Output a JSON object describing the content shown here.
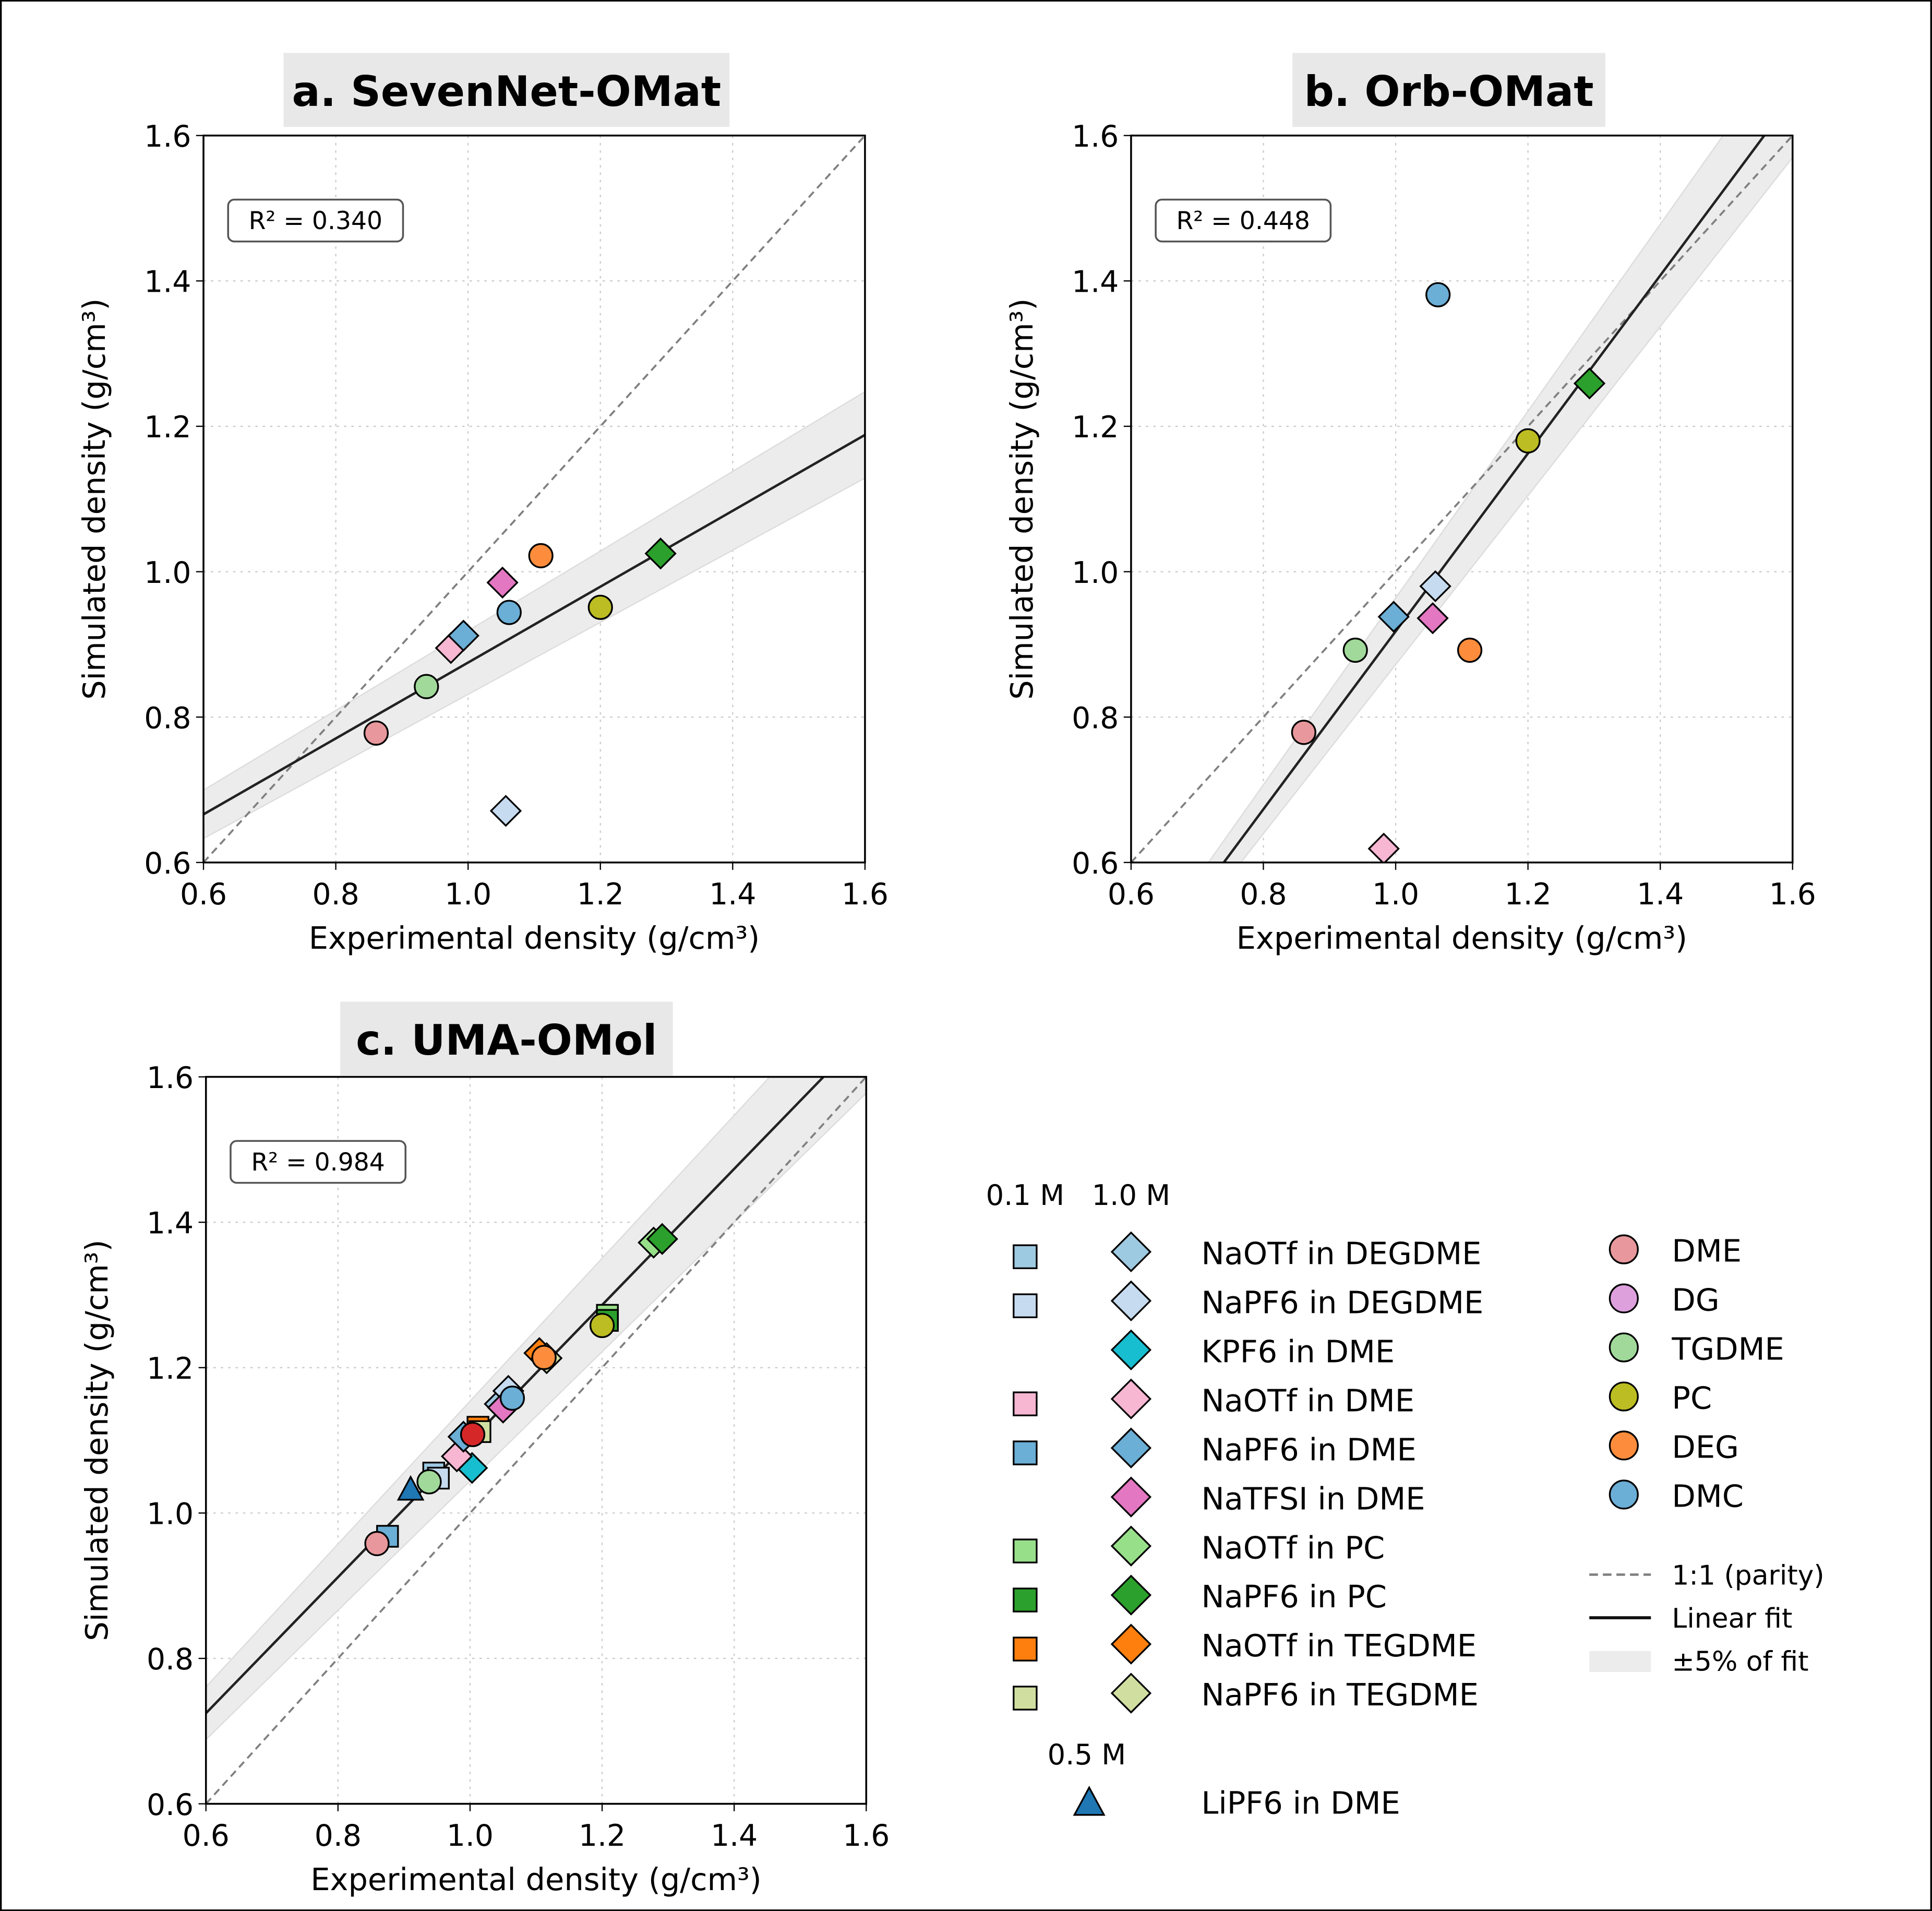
{
  "chart_data": [
    {
      "type": "scatter",
      "title": "a. SevenNet-OMat",
      "xlabel": "Experimental density (g/cm³)",
      "ylabel": "Simulated density (g/cm³)",
      "xlim": [
        0.6,
        1.6
      ],
      "ylim": [
        0.6,
        1.6
      ],
      "xticks": [
        "0.6",
        "0.8",
        "1.0",
        "1.2",
        "1.4",
        "1.6"
      ],
      "yticks": [
        "0.6",
        "0.8",
        "1.0",
        "1.2",
        "1.4",
        "1.6"
      ],
      "grid": true,
      "r2_label": "R² = 0.340",
      "fit": {
        "slope": 0.522,
        "intercept": 0.353
      },
      "points": [
        {
          "x": 0.861,
          "y": 0.778,
          "series": "DME",
          "shape": "circle"
        },
        {
          "x": 0.937,
          "y": 0.842,
          "series": "TGDME",
          "shape": "circle"
        },
        {
          "x": 0.974,
          "y": 0.895,
          "series": "NaOTf in DME",
          "shape": "diamond"
        },
        {
          "x": 0.993,
          "y": 0.912,
          "series": "NaPF6 in DME",
          "shape": "diamond"
        },
        {
          "x": 1.052,
          "y": 0.985,
          "series": "NaTFSI in DME",
          "shape": "diamond"
        },
        {
          "x": 1.062,
          "y": 0.944,
          "series": "DMC",
          "shape": "circle"
        },
        {
          "x": 1.11,
          "y": 1.022,
          "series": "DEG",
          "shape": "circle"
        },
        {
          "x": 1.2,
          "y": 0.951,
          "series": "PC",
          "shape": "circle"
        },
        {
          "x": 1.291,
          "y": 1.025,
          "series": "NaPF6 in PC",
          "shape": "diamond"
        },
        {
          "x": 1.057,
          "y": 0.671,
          "series": "NaPF6 in DEGDME",
          "shape": "diamond"
        }
      ]
    },
    {
      "type": "scatter",
      "title": "b. Orb-OMat",
      "xlabel": "Experimental density (g/cm³)",
      "ylabel": "Simulated density (g/cm³)",
      "xlim": [
        0.6,
        1.6
      ],
      "ylim": [
        0.6,
        1.6
      ],
      "xticks": [
        "0.6",
        "0.8",
        "1.0",
        "1.2",
        "1.4",
        "1.6"
      ],
      "yticks": [
        "0.6",
        "0.8",
        "1.0",
        "1.2",
        "1.4",
        "1.6"
      ],
      "grid": true,
      "r2_label": "R² = 0.448",
      "fit": {
        "slope": 1.224,
        "intercept": -0.306
      },
      "points": [
        {
          "x": 1.064,
          "y": 1.381,
          "series": "DMC",
          "shape": "circle"
        },
        {
          "x": 1.293,
          "y": 1.259,
          "series": "NaPF6 in PC",
          "shape": "diamond"
        },
        {
          "x": 1.2,
          "y": 1.18,
          "series": "PC",
          "shape": "circle"
        },
        {
          "x": 1.06,
          "y": 0.98,
          "series": "NaPF6 in DEGDME",
          "shape": "diamond"
        },
        {
          "x": 0.997,
          "y": 0.938,
          "series": "NaPF6 in DME",
          "shape": "diamond"
        },
        {
          "x": 1.056,
          "y": 0.936,
          "series": "NaTFSI in DME",
          "shape": "diamond"
        },
        {
          "x": 0.939,
          "y": 0.892,
          "series": "TGDME",
          "shape": "circle"
        },
        {
          "x": 1.112,
          "y": 0.892,
          "series": "DEG",
          "shape": "circle"
        },
        {
          "x": 0.861,
          "y": 0.779,
          "series": "DME",
          "shape": "circle"
        },
        {
          "x": 0.982,
          "y": 0.619,
          "series": "NaOTf in DME",
          "shape": "diamond"
        }
      ]
    },
    {
      "type": "scatter",
      "title": "c. UMA-OMol",
      "xlabel": "Experimental density (g/cm³)",
      "ylabel": "Simulated density (g/cm³)",
      "xlim": [
        0.6,
        1.6
      ],
      "ylim": [
        0.6,
        1.6
      ],
      "xticks": [
        "0.6",
        "0.8",
        "1.0",
        "1.2",
        "1.4",
        "1.6"
      ],
      "yticks": [
        "0.6",
        "0.8",
        "1.0",
        "1.2",
        "1.4",
        "1.6"
      ],
      "grid": true,
      "r2_label": "R² = 0.984",
      "fit": {
        "slope": 0.936,
        "intercept": 0.163
      },
      "points": [
        {
          "x": 0.875,
          "y": 0.968,
          "series": "NaPF6 in DME",
          "shape": "square"
        },
        {
          "x": 0.859,
          "y": 0.958,
          "series": "DME",
          "shape": "circle"
        },
        {
          "x": 0.91,
          "y": 1.031,
          "series": "LiPF6 in DME",
          "shape": "triangle"
        },
        {
          "x": 0.945,
          "y": 1.055,
          "series": "NaOTf in DEGDME",
          "shape": "square"
        },
        {
          "x": 0.952,
          "y": 1.048,
          "series": "NaPF6 in DEGDME",
          "shape": "square"
        },
        {
          "x": 0.938,
          "y": 1.043,
          "series": "TGDME",
          "shape": "circle"
        },
        {
          "x": 1.003,
          "y": 1.062,
          "series": "KPF6 in DME",
          "shape": "diamond"
        },
        {
          "x": 0.98,
          "y": 1.078,
          "series": "NaOTf in DME",
          "shape": "diamond"
        },
        {
          "x": 1.012,
          "y": 1.118,
          "series": "NaOTf in TEGDME",
          "shape": "square"
        },
        {
          "x": 1.015,
          "y": 1.112,
          "series": "NaPF6 in TEGDME",
          "shape": "square"
        },
        {
          "x": 0.99,
          "y": 1.105,
          "series": "NaPF6 in DME",
          "shape": "diamond"
        },
        {
          "x": 1.004,
          "y": 1.108,
          "series": "unlabeled",
          "shape": "circle",
          "color": "#d62728"
        },
        {
          "x": 1.045,
          "y": 1.15,
          "series": "NaOTf in DEGDME",
          "shape": "diamond"
        },
        {
          "x": 1.058,
          "y": 1.168,
          "series": "NaPF6 in DEGDME",
          "shape": "diamond"
        },
        {
          "x": 1.05,
          "y": 1.145,
          "series": "NaTFSI in DME",
          "shape": "diamond"
        },
        {
          "x": 1.064,
          "y": 1.158,
          "series": "DMC",
          "shape": "circle"
        },
        {
          "x": 1.105,
          "y": 1.22,
          "series": "NaOTf in TEGDME",
          "shape": "diamond"
        },
        {
          "x": 1.116,
          "y": 1.213,
          "series": "NaPF6 in TEGDME",
          "shape": "diamond"
        },
        {
          "x": 1.112,
          "y": 1.214,
          "series": "DEG",
          "shape": "circle"
        },
        {
          "x": 1.208,
          "y": 1.272,
          "series": "NaOTf in PC",
          "shape": "square"
        },
        {
          "x": 1.208,
          "y": 1.265,
          "series": "NaPF6 in PC",
          "shape": "square"
        },
        {
          "x": 1.2,
          "y": 1.258,
          "series": "PC",
          "shape": "circle"
        },
        {
          "x": 1.278,
          "y": 1.372,
          "series": "NaOTf in PC",
          "shape": "diamond"
        },
        {
          "x": 1.291,
          "y": 1.377,
          "series": "NaPF6 in PC",
          "shape": "diamond"
        }
      ]
    }
  ],
  "legend": {
    "header_01": "0.1 M",
    "header_10": "1.0 M",
    "header_05": "0.5 M",
    "salts": [
      {
        "label": "NaOTf in DEGDME",
        "color": "#9ecae1",
        "square": true
      },
      {
        "label": "NaPF6 in DEGDME",
        "color": "#c6dbef",
        "square": true
      },
      {
        "label": "KPF6 in DME",
        "color": "#17becf",
        "square": false
      },
      {
        "label": "NaOTf in DME",
        "color": "#f7b6d2",
        "square": true
      },
      {
        "label": "NaPF6 in DME",
        "color": "#6baed6",
        "square": true
      },
      {
        "label": "NaTFSI in DME",
        "color": "#e377c2",
        "square": false
      },
      {
        "label": "NaOTf in PC",
        "color": "#98df8a",
        "square": true
      },
      {
        "label": "NaPF6 in PC",
        "color": "#2ca02c",
        "square": true
      },
      {
        "label": "NaOTf in TEGDME",
        "color": "#ff7f0e",
        "square": true
      },
      {
        "label": "NaPF6 in TEGDME",
        "color": "#d0dfa0",
        "square": true
      }
    ],
    "lithium": {
      "label": "LiPF6 in DME",
      "color": "#1f77b4"
    },
    "solvents": [
      {
        "label": "DME",
        "color": "#e8989c"
      },
      {
        "label": "DG",
        "color": "#dda0dd"
      },
      {
        "label": "TGDME",
        "color": "#a1d99b"
      },
      {
        "label": "PC",
        "color": "#bcbd22"
      },
      {
        "label": "DEG",
        "color": "#fd8d3c"
      },
      {
        "label": "DMC",
        "color": "#6baed6"
      }
    ],
    "lines": {
      "parity": "1:1 (parity)",
      "fit": "Linear fit",
      "band": "±5% of fit"
    }
  }
}
